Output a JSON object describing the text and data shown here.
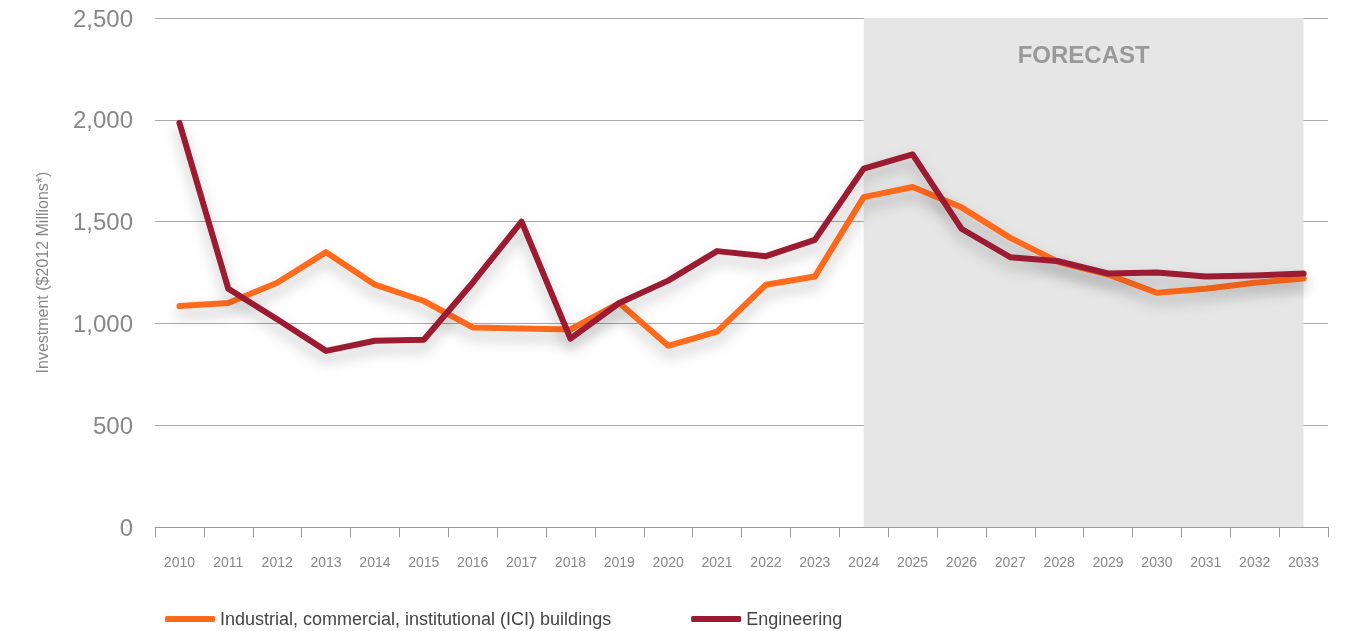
{
  "chart_data": {
    "type": "line",
    "ylabel": "Investment ($2012 Millions*)",
    "categories": [
      "2010",
      "2011",
      "2012",
      "2013",
      "2014",
      "2015",
      "2016",
      "2017",
      "2018",
      "2019",
      "2020",
      "2021",
      "2022",
      "2023",
      "2024",
      "2025",
      "2026",
      "2027",
      "2028",
      "2029",
      "2030",
      "2031",
      "2032",
      "2033"
    ],
    "series": [
      {
        "name": "Industrial, commercial, institutional (ICI) buildings",
        "color": "#ff6b1c",
        "values": [
          1085,
          1100,
          1200,
          1350,
          1190,
          1110,
          980,
          975,
          970,
          1100,
          890,
          960,
          1190,
          1230,
          1620,
          1670,
          1570,
          1420,
          1300,
          1240,
          1150,
          1170,
          1200,
          1220
        ]
      },
      {
        "name": "Engineering",
        "color": "#9b1b30",
        "values": [
          1985,
          1170,
          1020,
          865,
          915,
          920,
          1200,
          1500,
          925,
          1100,
          1210,
          1355,
          1330,
          1410,
          1760,
          1830,
          1465,
          1325,
          1305,
          1245,
          1250,
          1230,
          1235,
          1245
        ]
      }
    ],
    "ylim": [
      0,
      2500
    ],
    "yticks": [
      0,
      500,
      {
        "value": 1000,
        "label": "1,000"
      },
      {
        "value": 1500,
        "label": "1,500"
      },
      {
        "value": 2000,
        "label": "2,000"
      },
      {
        "value": 2500,
        "label": "2,500"
      }
    ],
    "bands": [
      {
        "axis": "x",
        "from": "2024",
        "to": "2033",
        "label": "FORECAST",
        "color": "#e6e6e6"
      }
    ],
    "grid": "y",
    "legend": "bottom left",
    "marker": "none",
    "line_style": "solid"
  }
}
